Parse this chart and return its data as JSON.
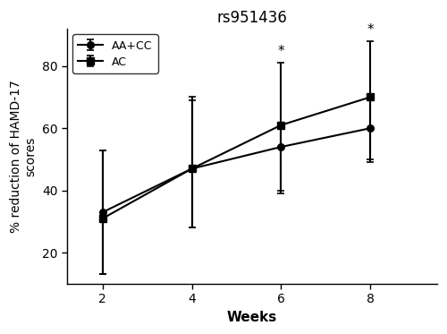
{
  "title": "rs951436",
  "xlabel": "Weeks",
  "ylabel": "% reduction of HAMD-17\nscores",
  "weeks": [
    2,
    4,
    6,
    8
  ],
  "aa_cc_mean": [
    33,
    47,
    54,
    60
  ],
  "aa_cc_err_upper": [
    53,
    69,
    61,
    69
  ],
  "aa_cc_err_lower": [
    13,
    28,
    39,
    49
  ],
  "ac_mean": [
    31,
    47,
    61,
    70
  ],
  "ac_err_upper": [
    53,
    70,
    81,
    88
  ],
  "ac_err_lower": [
    13,
    28,
    40,
    50
  ],
  "ylim": [
    10,
    92
  ],
  "yticks": [
    20,
    40,
    60,
    80
  ],
  "xlim": [
    1.2,
    9.5
  ],
  "xticks": [
    2,
    4,
    6,
    8
  ],
  "significance_weeks": [
    6,
    8
  ],
  "line_color": "#000000",
  "background_color": "#ffffff"
}
